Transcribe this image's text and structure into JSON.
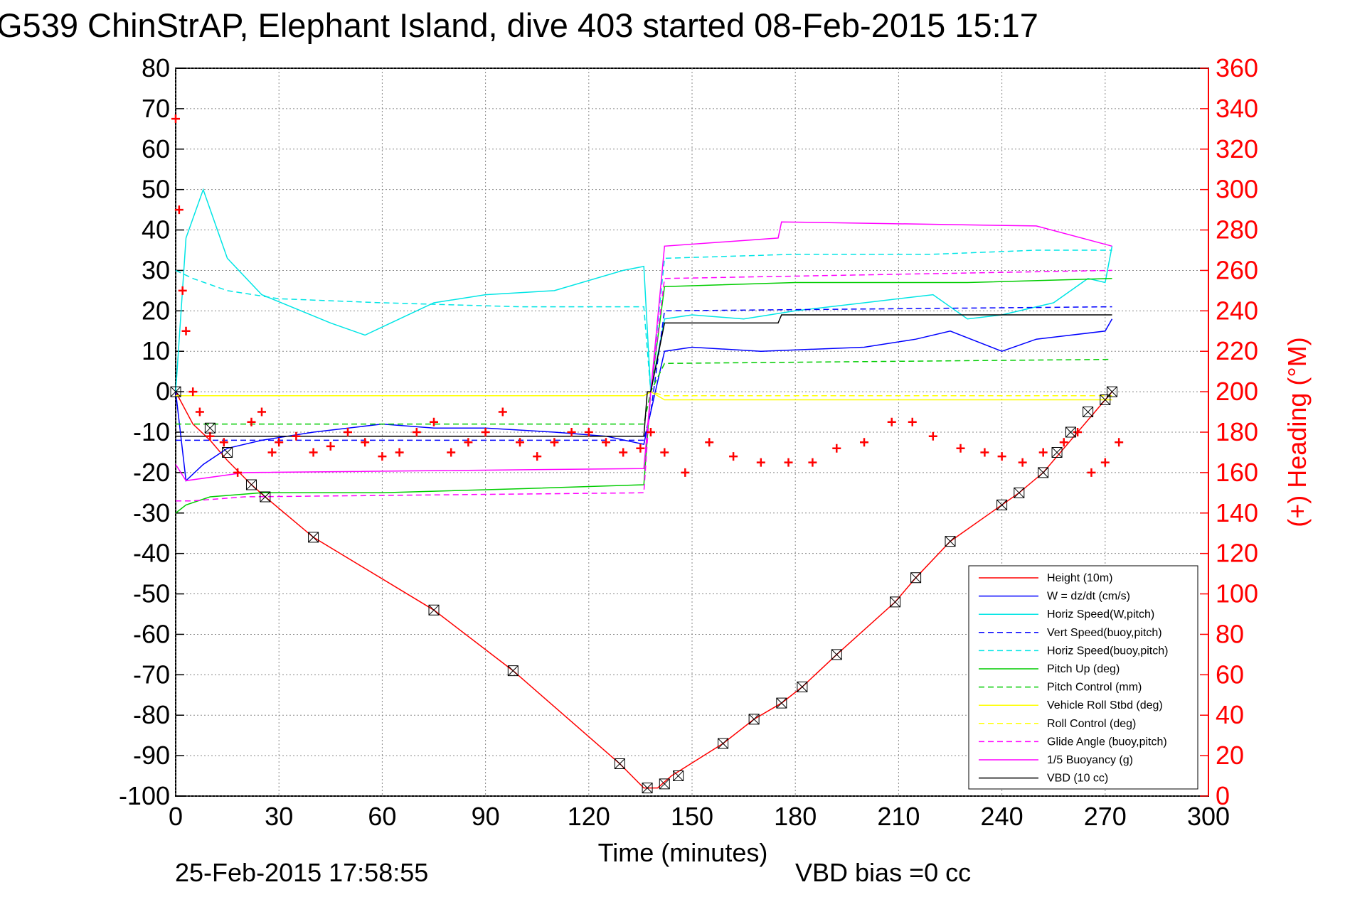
{
  "figure": {
    "title": "G539 ChinStrAP, Elephant Island, dive 403 started 08-Feb-2015 15:17",
    "footer_date": "25-Feb-2015 17:58:55",
    "footer_bias": "VBD bias =0 cc"
  },
  "chart_data": {
    "type": "line",
    "xlabel": "Time (minutes)",
    "ylabel": "",
    "y2label": "(+) Heading (°M)",
    "xlim": [
      0,
      300
    ],
    "ylim": [
      -100,
      80
    ],
    "y2lim": [
      0,
      360
    ],
    "xticks": [
      0,
      30,
      60,
      90,
      120,
      150,
      180,
      210,
      240,
      270,
      300
    ],
    "yticks": [
      80,
      70,
      60,
      50,
      40,
      30,
      20,
      10,
      0,
      -10,
      -20,
      -30,
      -40,
      -50,
      -60,
      -70,
      -80,
      -90,
      -100
    ],
    "y2ticks": [
      360,
      340,
      320,
      300,
      280,
      260,
      240,
      220,
      200,
      180,
      160,
      140,
      120,
      100,
      80,
      60,
      40,
      20,
      0
    ],
    "grid": true,
    "legend_position": "bottom-right",
    "series": [
      {
        "name": "Height (10m)",
        "color": "#ff0000",
        "style": "solid",
        "x": [
          0,
          5,
          10,
          15,
          22,
          26,
          40,
          75,
          98,
          129,
          136,
          138,
          140,
          144,
          159,
          168,
          176,
          182,
          192,
          209,
          215,
          225,
          240,
          245,
          252,
          262,
          267,
          272
        ],
        "y": [
          0,
          -8,
          -12,
          -17,
          -23,
          -26,
          -36,
          -54,
          -69,
          -92,
          -98,
          -98,
          -98,
          -95,
          -87,
          -81,
          -77,
          -73,
          -65,
          -52,
          -46,
          -37,
          -28,
          -25,
          -20,
          -10,
          -5,
          0
        ]
      },
      {
        "name": "W = dz/dt (cm/s)",
        "color": "#0000ff",
        "style": "solid",
        "x": [
          0,
          3,
          8,
          15,
          25,
          40,
          60,
          75,
          90,
          110,
          125,
          136,
          138,
          142,
          150,
          170,
          200,
          215,
          225,
          240,
          250,
          260,
          270,
          272
        ],
        "y": [
          0,
          -22,
          -18,
          -14,
          -12,
          -10,
          -8,
          -9,
          -9,
          -10,
          -11,
          -13,
          -5,
          10,
          11,
          10,
          11,
          13,
          15,
          10,
          13,
          14,
          15,
          18
        ]
      },
      {
        "name": "Horiz Speed(W,pitch)",
        "color": "#00e5e5",
        "style": "solid",
        "x": [
          0,
          3,
          8,
          15,
          25,
          45,
          55,
          60,
          75,
          90,
          110,
          130,
          136,
          138,
          142,
          150,
          165,
          180,
          200,
          220,
          230,
          240,
          255,
          265,
          270,
          272
        ],
        "y": [
          0,
          38,
          50,
          33,
          24,
          17,
          14,
          16,
          22,
          24,
          25,
          30,
          31,
          0,
          18,
          19,
          18,
          20,
          22,
          24,
          18,
          19,
          22,
          28,
          27,
          36
        ]
      },
      {
        "name": "Vert Speed(buoy,pitch)",
        "color": "#0000ff",
        "style": "dashed",
        "x": [
          0,
          136,
          138,
          142,
          272
        ],
        "y": [
          -12,
          -12,
          -5,
          20,
          21
        ]
      },
      {
        "name": "Horiz Speed(buoy,pitch)",
        "color": "#00e5e5",
        "style": "dashed",
        "x": [
          0,
          5,
          15,
          30,
          60,
          100,
          136,
          138,
          142,
          180,
          220,
          250,
          272
        ],
        "y": [
          30,
          28,
          25,
          23,
          22,
          21,
          21,
          0,
          33,
          34,
          34,
          35,
          35
        ]
      },
      {
        "name": "Pitch Up (deg)",
        "color": "#00cc00",
        "style": "solid",
        "x": [
          0,
          3,
          10,
          25,
          60,
          100,
          136,
          138,
          142,
          180,
          230,
          272
        ],
        "y": [
          -30,
          -28,
          -26,
          -25,
          -25,
          -24,
          -23,
          0,
          26,
          27,
          27,
          28
        ]
      },
      {
        "name": "Pitch Control (mm)",
        "color": "#00cc00",
        "style": "dashed",
        "x": [
          0,
          136,
          138,
          142,
          272
        ],
        "y": [
          -8,
          -8,
          0,
          7,
          8
        ]
      },
      {
        "name": "Vehicle Roll Stbd (deg)",
        "color": "#ffff00",
        "style": "solid",
        "x": [
          0,
          136,
          138,
          142,
          272
        ],
        "y": [
          -1,
          -1,
          0,
          -2,
          -2
        ]
      },
      {
        "name": "Roll Control (deg)",
        "color": "#ffff00",
        "style": "dashed",
        "x": [
          0,
          136,
          138,
          142,
          272
        ],
        "y": [
          -1,
          -1,
          0,
          -1,
          -1
        ]
      },
      {
        "name": "Glide Angle (buoy,pitch)",
        "color": "#ff00ff",
        "style": "dashed",
        "x": [
          0,
          5,
          20,
          136,
          138,
          142,
          272
        ],
        "y": [
          -27,
          -27,
          -26,
          -25,
          0,
          28,
          30
        ]
      },
      {
        "name": "1/5 Buoyancy (g)",
        "color": "#ff00ff",
        "style": "solid",
        "x": [
          0,
          3,
          20,
          136,
          138,
          142,
          175,
          176,
          250,
          272
        ],
        "y": [
          -18,
          -22,
          -20,
          -19,
          0,
          36,
          38,
          42,
          41,
          36
        ]
      },
      {
        "name": "VBD (10 cc)",
        "color": "#000000",
        "style": "solid",
        "x": [
          0,
          20,
          136,
          137,
          138,
          142,
          175,
          176,
          272
        ],
        "y": [
          -11,
          -11,
          -11,
          0,
          0,
          17,
          17,
          19,
          19
        ]
      }
    ],
    "heading_series": {
      "color": "#ff0000",
      "marker": "+",
      "x": [
        0,
        1,
        2,
        3,
        5,
        7,
        10,
        14,
        18,
        22,
        25,
        28,
        30,
        35,
        40,
        45,
        50,
        55,
        60,
        65,
        70,
        75,
        80,
        85,
        90,
        95,
        100,
        105,
        110,
        115,
        120,
        125,
        130,
        135,
        138,
        142,
        148,
        155,
        162,
        170,
        178,
        185,
        192,
        200,
        208,
        214,
        220,
        228,
        235,
        240,
        246,
        252,
        258,
        262,
        266,
        270,
        274
      ],
      "y": [
        335,
        290,
        250,
        230,
        200,
        190,
        178,
        175,
        160,
        185,
        190,
        170,
        175,
        178,
        170,
        173,
        180,
        175,
        168,
        170,
        180,
        185,
        170,
        175,
        180,
        190,
        175,
        168,
        175,
        180,
        180,
        175,
        170,
        172,
        180,
        170,
        160,
        175,
        168,
        165,
        165,
        165,
        172,
        175,
        185,
        185,
        178,
        172,
        170,
        168,
        165,
        170,
        175,
        180,
        160,
        165,
        175
      ]
    },
    "markers": {
      "x": [
        0,
        10,
        15,
        22,
        26,
        40,
        75,
        98,
        129,
        137,
        142,
        146,
        159,
        168,
        176,
        182,
        192,
        209,
        215,
        225,
        240,
        245,
        252,
        256,
        260,
        265,
        270,
        272
      ],
      "y": [
        0,
        -9,
        -15,
        -23,
        -26,
        -36,
        -54,
        -69,
        -92,
        -98,
        -97,
        -95,
        -87,
        -81,
        -77,
        -73,
        -65,
        -52,
        -46,
        -37,
        -28,
        -25,
        -20,
        -15,
        -10,
        -5,
        -2,
        0
      ]
    }
  }
}
